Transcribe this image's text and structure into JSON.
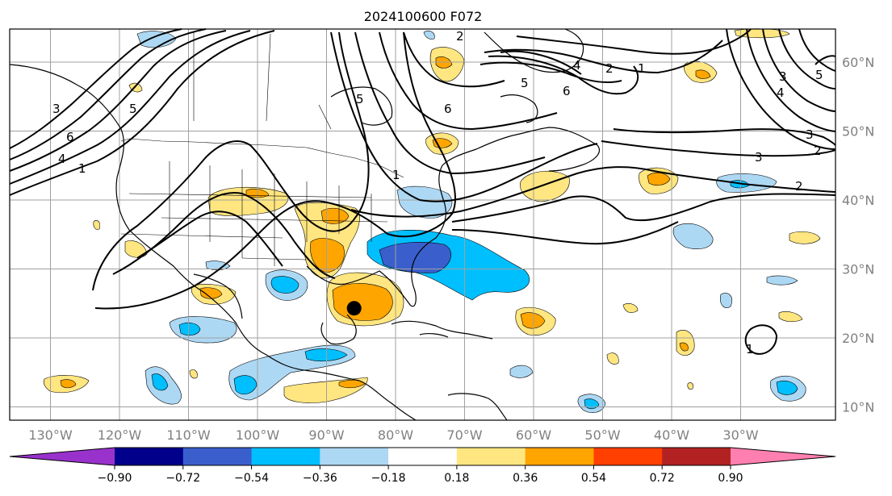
{
  "title": "2024100600 F072",
  "lon_labels": [
    "130°W",
    "120°W",
    "110°W",
    "100°W",
    "90°W",
    "80°W",
    "70°W",
    "60°W",
    "50°W",
    "40°W",
    "30°W"
  ],
  "lat_labels": [
    "60°N",
    "50°N",
    "40°N",
    "30°N",
    "20°N",
    "10°N"
  ],
  "colorbar": {
    "tick_labels": [
      "−0.90",
      "−0.72",
      "−0.54",
      "−0.36",
      "−0.18",
      "0.18",
      "0.36",
      "0.54",
      "0.72",
      "0.90"
    ],
    "colors": [
      "#9932cc",
      "#00008b",
      "#3a5fcd",
      "#00bfff",
      "#add8f4",
      "#ffffff",
      "#ffe680",
      "#ffa500",
      "#ff4000",
      "#b22222",
      "#ff80b0"
    ]
  },
  "contour_labels": [
    "1",
    "2",
    "3",
    "4",
    "5",
    "6",
    "1",
    "2",
    "3",
    "4",
    "5",
    "6",
    "6",
    "5",
    "4",
    "3",
    "2",
    "1",
    "3",
    "2",
    "5",
    "6",
    "1"
  ],
  "marker": {
    "name": "storm-center-dot",
    "lon": -86,
    "lat": 24.3
  }
}
